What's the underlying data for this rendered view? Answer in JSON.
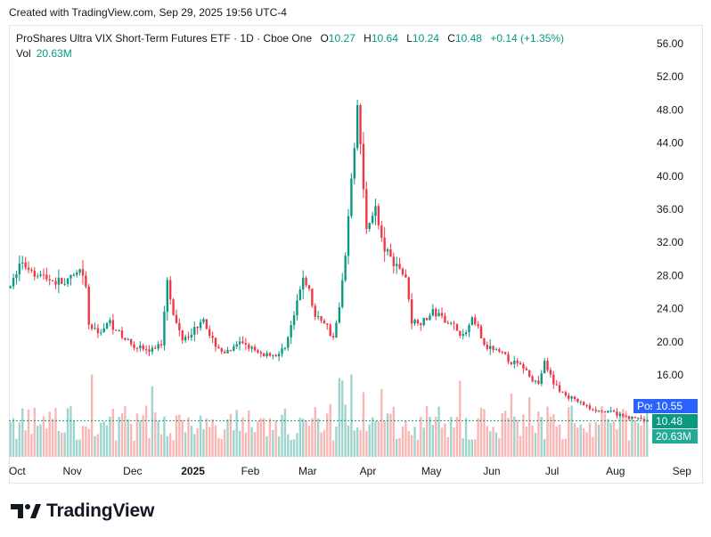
{
  "header": {
    "created": "Created with TradingView.com, Sep 29, 2025 19:56 UTC-4"
  },
  "legend": {
    "name": "ProShares Ultra VIX Short-Term Futures ETF · 1D · Cboe One",
    "open_label": "O",
    "open": "10.27",
    "high_label": "H",
    "high": "10.64",
    "low_label": "L",
    "low": "10.24",
    "close_label": "C",
    "close": "10.48",
    "change": "+0.14 (+1.35%)",
    "vol_label": "Vol",
    "vol": "20.63M"
  },
  "badges": {
    "post_label": "Post",
    "post_value": "10.55",
    "last_value": "10.48",
    "vol_value": "20.63M"
  },
  "colors": {
    "up": "#089981",
    "down": "#f23645",
    "up_vol": "#8ecdc4",
    "down_vol": "#f7a9a7",
    "dark_badge": "#22ab94",
    "post_badge": "#2962ff"
  },
  "brand": {
    "name": "TradingView"
  },
  "chart_data": {
    "type": "candlestick",
    "ylim": [
      7.5,
      58
    ],
    "yticks": [
      16,
      20,
      24,
      28,
      32,
      36,
      40,
      44,
      48,
      52,
      56
    ],
    "ytick_labels": [
      "16.00",
      "20.00",
      "24.00",
      "28.00",
      "32.00",
      "36.00",
      "40.00",
      "44.00",
      "48.00",
      "52.00",
      "56.00"
    ],
    "xticks": [
      "Oct",
      "Nov",
      "Dec",
      "2025",
      "Feb",
      "Mar",
      "Apr",
      "May",
      "Jun",
      "Jul",
      "Aug",
      "Sep",
      "Oct"
    ],
    "last_close": 10.48,
    "post_price": 10.55,
    "path": [
      [
        0,
        26.5
      ],
      [
        3,
        29.5
      ],
      [
        8,
        28.5
      ],
      [
        13,
        27.5
      ],
      [
        18,
        27.0
      ],
      [
        23,
        28.5
      ],
      [
        25,
        26.5
      ],
      [
        26,
        22.0
      ],
      [
        29,
        21.0
      ],
      [
        33,
        22.5
      ],
      [
        37,
        20.5
      ],
      [
        42,
        19.5
      ],
      [
        46,
        18.8
      ],
      [
        50,
        19.8
      ],
      [
        52,
        28.0
      ],
      [
        54,
        23.0
      ],
      [
        57,
        20.5
      ],
      [
        61,
        21.5
      ],
      [
        64,
        23.0
      ],
      [
        66,
        20.5
      ],
      [
        71,
        18.5
      ],
      [
        77,
        20.0
      ],
      [
        82,
        18.5
      ],
      [
        86,
        18.5
      ],
      [
        89,
        18.3
      ],
      [
        92,
        20.5
      ],
      [
        95,
        24.5
      ],
      [
        97,
        28.0
      ],
      [
        99,
        26.0
      ],
      [
        101,
        23.0
      ],
      [
        104,
        22.5
      ],
      [
        107,
        20.5
      ],
      [
        109,
        24.0
      ],
      [
        111,
        30.5
      ],
      [
        113,
        40.0
      ],
      [
        115,
        48.0
      ],
      [
        116,
        44.0
      ],
      [
        117,
        38.0
      ],
      [
        118,
        34.0
      ],
      [
        121,
        36.0
      ],
      [
        123,
        32.0
      ],
      [
        126,
        30.0
      ],
      [
        129,
        29.0
      ],
      [
        131,
        27.5
      ],
      [
        132,
        25.5
      ],
      [
        133,
        22.5
      ],
      [
        137,
        22.5
      ],
      [
        140,
        23.5
      ],
      [
        145,
        22.5
      ],
      [
        148,
        21.5
      ],
      [
        150,
        20.5
      ],
      [
        153,
        22.5
      ],
      [
        155,
        21.5
      ],
      [
        157,
        19.5
      ],
      [
        160,
        19.0
      ],
      [
        163,
        18.5
      ],
      [
        166,
        17.5
      ],
      [
        170,
        17.0
      ],
      [
        173,
        15.5
      ],
      [
        175,
        15.0
      ],
      [
        177,
        17.5
      ],
      [
        180,
        15.0
      ],
      [
        184,
        13.5
      ],
      [
        188,
        12.8
      ],
      [
        192,
        12.0
      ],
      [
        197,
        11.5
      ],
      [
        200,
        11.5
      ],
      [
        203,
        11.0
      ],
      [
        207,
        10.8
      ],
      [
        210,
        10.5
      ],
      [
        211,
        10.48
      ]
    ],
    "date_ticks_index": [
      0,
      21,
      41,
      61,
      80,
      99,
      119,
      140,
      160,
      180,
      201,
      223,
      243
    ]
  }
}
